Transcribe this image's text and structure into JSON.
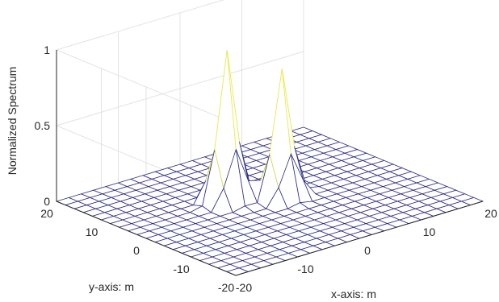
{
  "chart_data": {
    "type": "surface",
    "xlabel": "x-axis: m",
    "ylabel": "y-axis: m",
    "zlabel": "Normalized Spectrum",
    "xlim": [
      -20,
      20
    ],
    "ylim": [
      -20,
      20
    ],
    "zlim": [
      0,
      1
    ],
    "x_ticks": [
      "-20",
      "-10",
      "0",
      "10",
      "20"
    ],
    "y_ticks": [
      "-20",
      "-10",
      "0",
      "10",
      "20"
    ],
    "z_ticks": [
      "0",
      "0.5",
      "1"
    ],
    "grid": true,
    "mesh": {
      "min": -20,
      "max": 20,
      "step": 2
    },
    "peaks": [
      {
        "x": -4,
        "y": 4,
        "z": 1.0
      },
      {
        "x": 2,
        "y": 0,
        "z": 0.85
      }
    ],
    "colors": {
      "mesh": "#2c2c8c",
      "peak_top": "#e8e84a",
      "peak_mid": "#3aa0c8",
      "grid": "#e3e3e3",
      "axis": "#262626"
    }
  }
}
